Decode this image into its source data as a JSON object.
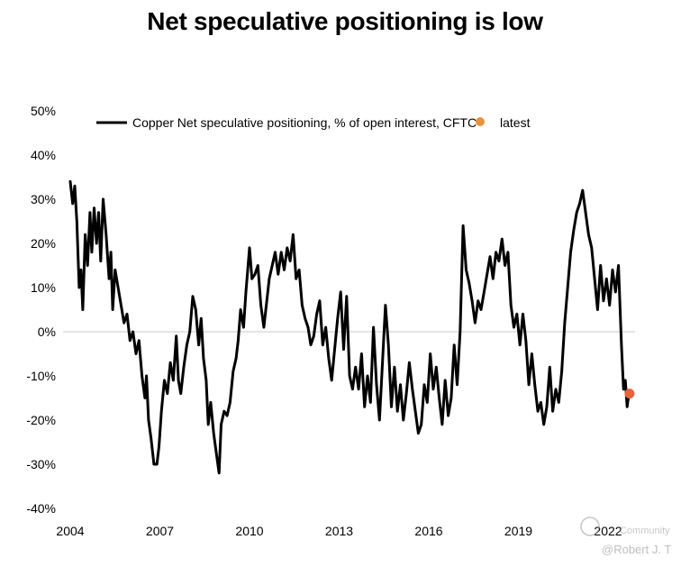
{
  "chart_data": {
    "type": "line",
    "title": "Net speculative positioning is low",
    "xlabel": "",
    "ylabel": "",
    "ylim": [
      -40,
      50
    ],
    "xlim": [
      2004,
      2023.6
    ],
    "y_ticks": [
      {
        "value": 50,
        "label": "50%"
      },
      {
        "value": 40,
        "label": "40%"
      },
      {
        "value": 30,
        "label": "30%"
      },
      {
        "value": 20,
        "label": "20%"
      },
      {
        "value": 10,
        "label": "10%"
      },
      {
        "value": 0,
        "label": "0%"
      },
      {
        "value": -10,
        "label": "-10%"
      },
      {
        "value": -20,
        "label": "-20%"
      },
      {
        "value": -30,
        "label": "-30%"
      },
      {
        "value": -40,
        "label": "-40%"
      }
    ],
    "x_ticks": [
      {
        "value": 2004,
        "label": "2004"
      },
      {
        "value": 2007,
        "label": "2007"
      },
      {
        "value": 2010,
        "label": "2010"
      },
      {
        "value": 2013,
        "label": "2013"
      },
      {
        "value": 2016,
        "label": "2016"
      },
      {
        "value": 2019,
        "label": "2019"
      },
      {
        "value": 2022,
        "label": "2022"
      }
    ],
    "legend": [
      "Copper Net speculative positioning, % of open interest, CFTC",
      "latest"
    ],
    "legend_position": "top",
    "series": [
      {
        "name": "Copper Net speculative positioning, % of open interest, CFTC",
        "color": "#000000",
        "points": [
          [
            2004.0,
            34
          ],
          [
            2004.08,
            29
          ],
          [
            2004.15,
            33
          ],
          [
            2004.22,
            25
          ],
          [
            2004.3,
            10
          ],
          [
            2004.36,
            14
          ],
          [
            2004.42,
            5
          ],
          [
            2004.5,
            22
          ],
          [
            2004.58,
            15
          ],
          [
            2004.66,
            27
          ],
          [
            2004.72,
            18
          ],
          [
            2004.8,
            28
          ],
          [
            2004.88,
            20
          ],
          [
            2004.95,
            27
          ],
          [
            2005.02,
            16
          ],
          [
            2005.1,
            30
          ],
          [
            2005.2,
            22
          ],
          [
            2005.3,
            12
          ],
          [
            2005.36,
            18
          ],
          [
            2005.42,
            5
          ],
          [
            2005.5,
            14
          ],
          [
            2005.6,
            10
          ],
          [
            2005.7,
            6
          ],
          [
            2005.8,
            2
          ],
          [
            2005.9,
            4
          ],
          [
            2006.0,
            -2
          ],
          [
            2006.1,
            0
          ],
          [
            2006.2,
            -5
          ],
          [
            2006.3,
            -2
          ],
          [
            2006.4,
            -10
          ],
          [
            2006.5,
            -15
          ],
          [
            2006.55,
            -10
          ],
          [
            2006.62,
            -20
          ],
          [
            2006.7,
            -24
          ],
          [
            2006.8,
            -30
          ],
          [
            2006.9,
            -30
          ],
          [
            2006.97,
            -26
          ],
          [
            2007.05,
            -18
          ],
          [
            2007.15,
            -11
          ],
          [
            2007.25,
            -14
          ],
          [
            2007.35,
            -7
          ],
          [
            2007.45,
            -11
          ],
          [
            2007.55,
            -1
          ],
          [
            2007.62,
            -11
          ],
          [
            2007.7,
            -14
          ],
          [
            2007.8,
            -8
          ],
          [
            2007.9,
            -3
          ],
          [
            2008.0,
            0
          ],
          [
            2008.1,
            8
          ],
          [
            2008.2,
            5
          ],
          [
            2008.3,
            -3
          ],
          [
            2008.38,
            3
          ],
          [
            2008.46,
            -6
          ],
          [
            2008.55,
            -11
          ],
          [
            2008.62,
            -21
          ],
          [
            2008.7,
            -16
          ],
          [
            2008.8,
            -23
          ],
          [
            2008.9,
            -28
          ],
          [
            2008.98,
            -32
          ],
          [
            2009.05,
            -21
          ],
          [
            2009.15,
            -18
          ],
          [
            2009.25,
            -19
          ],
          [
            2009.35,
            -16
          ],
          [
            2009.45,
            -9
          ],
          [
            2009.55,
            -6
          ],
          [
            2009.62,
            -2
          ],
          [
            2009.7,
            5
          ],
          [
            2009.8,
            1
          ],
          [
            2009.88,
            9
          ],
          [
            2010.0,
            19
          ],
          [
            2010.08,
            12
          ],
          [
            2010.18,
            13
          ],
          [
            2010.28,
            15
          ],
          [
            2010.38,
            6
          ],
          [
            2010.48,
            1
          ],
          [
            2010.58,
            7
          ],
          [
            2010.66,
            12
          ],
          [
            2010.76,
            15
          ],
          [
            2010.86,
            18
          ],
          [
            2010.96,
            13
          ],
          [
            2011.06,
            18
          ],
          [
            2011.16,
            14
          ],
          [
            2011.26,
            19
          ],
          [
            2011.36,
            16
          ],
          [
            2011.46,
            22
          ],
          [
            2011.56,
            12
          ],
          [
            2011.66,
            14
          ],
          [
            2011.76,
            6
          ],
          [
            2011.86,
            3
          ],
          [
            2011.96,
            1
          ],
          [
            2012.05,
            -3
          ],
          [
            2012.15,
            -1
          ],
          [
            2012.25,
            4
          ],
          [
            2012.35,
            7
          ],
          [
            2012.45,
            -3
          ],
          [
            2012.55,
            1
          ],
          [
            2012.65,
            -6
          ],
          [
            2012.75,
            -11
          ],
          [
            2012.85,
            -4
          ],
          [
            2012.95,
            3
          ],
          [
            2013.05,
            9
          ],
          [
            2013.15,
            -4
          ],
          [
            2013.25,
            8
          ],
          [
            2013.35,
            -10
          ],
          [
            2013.45,
            -13
          ],
          [
            2013.55,
            -8
          ],
          [
            2013.65,
            -13
          ],
          [
            2013.75,
            -5
          ],
          [
            2013.85,
            -17
          ],
          [
            2013.95,
            -10
          ],
          [
            2014.05,
            -16
          ],
          [
            2014.15,
            1
          ],
          [
            2014.25,
            -12
          ],
          [
            2014.35,
            -20
          ],
          [
            2014.45,
            -7
          ],
          [
            2014.55,
            6
          ],
          [
            2014.65,
            -3
          ],
          [
            2014.75,
            -17
          ],
          [
            2014.85,
            -8
          ],
          [
            2014.95,
            -18
          ],
          [
            2015.05,
            -12
          ],
          [
            2015.15,
            -20
          ],
          [
            2015.25,
            -14
          ],
          [
            2015.35,
            -7
          ],
          [
            2015.45,
            -13
          ],
          [
            2015.55,
            -18
          ],
          [
            2015.65,
            -23
          ],
          [
            2015.75,
            -21
          ],
          [
            2015.85,
            -12
          ],
          [
            2015.95,
            -16
          ],
          [
            2016.05,
            -5
          ],
          [
            2016.15,
            -13
          ],
          [
            2016.25,
            -8
          ],
          [
            2016.35,
            -15
          ],
          [
            2016.45,
            -21
          ],
          [
            2016.55,
            -11
          ],
          [
            2016.65,
            -19
          ],
          [
            2016.75,
            -15
          ],
          [
            2016.85,
            -3
          ],
          [
            2016.95,
            -12
          ],
          [
            2017.05,
            0
          ],
          [
            2017.15,
            24
          ],
          [
            2017.25,
            14
          ],
          [
            2017.35,
            11
          ],
          [
            2017.45,
            7
          ],
          [
            2017.55,
            2
          ],
          [
            2017.65,
            7
          ],
          [
            2017.75,
            5
          ],
          [
            2017.85,
            9
          ],
          [
            2017.95,
            13
          ],
          [
            2018.05,
            17
          ],
          [
            2018.15,
            12
          ],
          [
            2018.25,
            18
          ],
          [
            2018.35,
            16
          ],
          [
            2018.45,
            21
          ],
          [
            2018.55,
            15
          ],
          [
            2018.65,
            18
          ],
          [
            2018.75,
            6
          ],
          [
            2018.85,
            1
          ],
          [
            2018.95,
            4
          ],
          [
            2019.05,
            -3
          ],
          [
            2019.15,
            4
          ],
          [
            2019.25,
            -2
          ],
          [
            2019.35,
            -12
          ],
          [
            2019.45,
            -5
          ],
          [
            2019.55,
            -12
          ],
          [
            2019.65,
            -18
          ],
          [
            2019.75,
            -16
          ],
          [
            2019.85,
            -21
          ],
          [
            2019.95,
            -17
          ],
          [
            2020.05,
            -8
          ],
          [
            2020.15,
            -18
          ],
          [
            2020.25,
            -13
          ],
          [
            2020.35,
            -16
          ],
          [
            2020.45,
            -9
          ],
          [
            2020.55,
            2
          ],
          [
            2020.65,
            10
          ],
          [
            2020.75,
            18
          ],
          [
            2020.85,
            23
          ],
          [
            2020.95,
            27
          ],
          [
            2021.05,
            29
          ],
          [
            2021.15,
            32
          ],
          [
            2021.25,
            27
          ],
          [
            2021.35,
            22
          ],
          [
            2021.45,
            19
          ],
          [
            2021.55,
            12
          ],
          [
            2021.65,
            5
          ],
          [
            2021.75,
            15
          ],
          [
            2021.85,
            7
          ],
          [
            2021.95,
            12
          ],
          [
            2022.05,
            6
          ],
          [
            2022.15,
            14
          ],
          [
            2022.25,
            9
          ],
          [
            2022.35,
            15
          ],
          [
            2022.45,
            -3
          ],
          [
            2022.52,
            -13
          ],
          [
            2022.58,
            -11
          ],
          [
            2022.64,
            -17
          ],
          [
            2022.7,
            -14
          ]
        ]
      },
      {
        "name": "latest",
        "color": "#e8623a",
        "points": [
          [
            2022.72,
            -14
          ]
        ]
      }
    ],
    "legend_marker_color": "#e8923e",
    "grid": false
  },
  "watermark": {
    "text": "Community",
    "author": "@Robert J. T"
  }
}
